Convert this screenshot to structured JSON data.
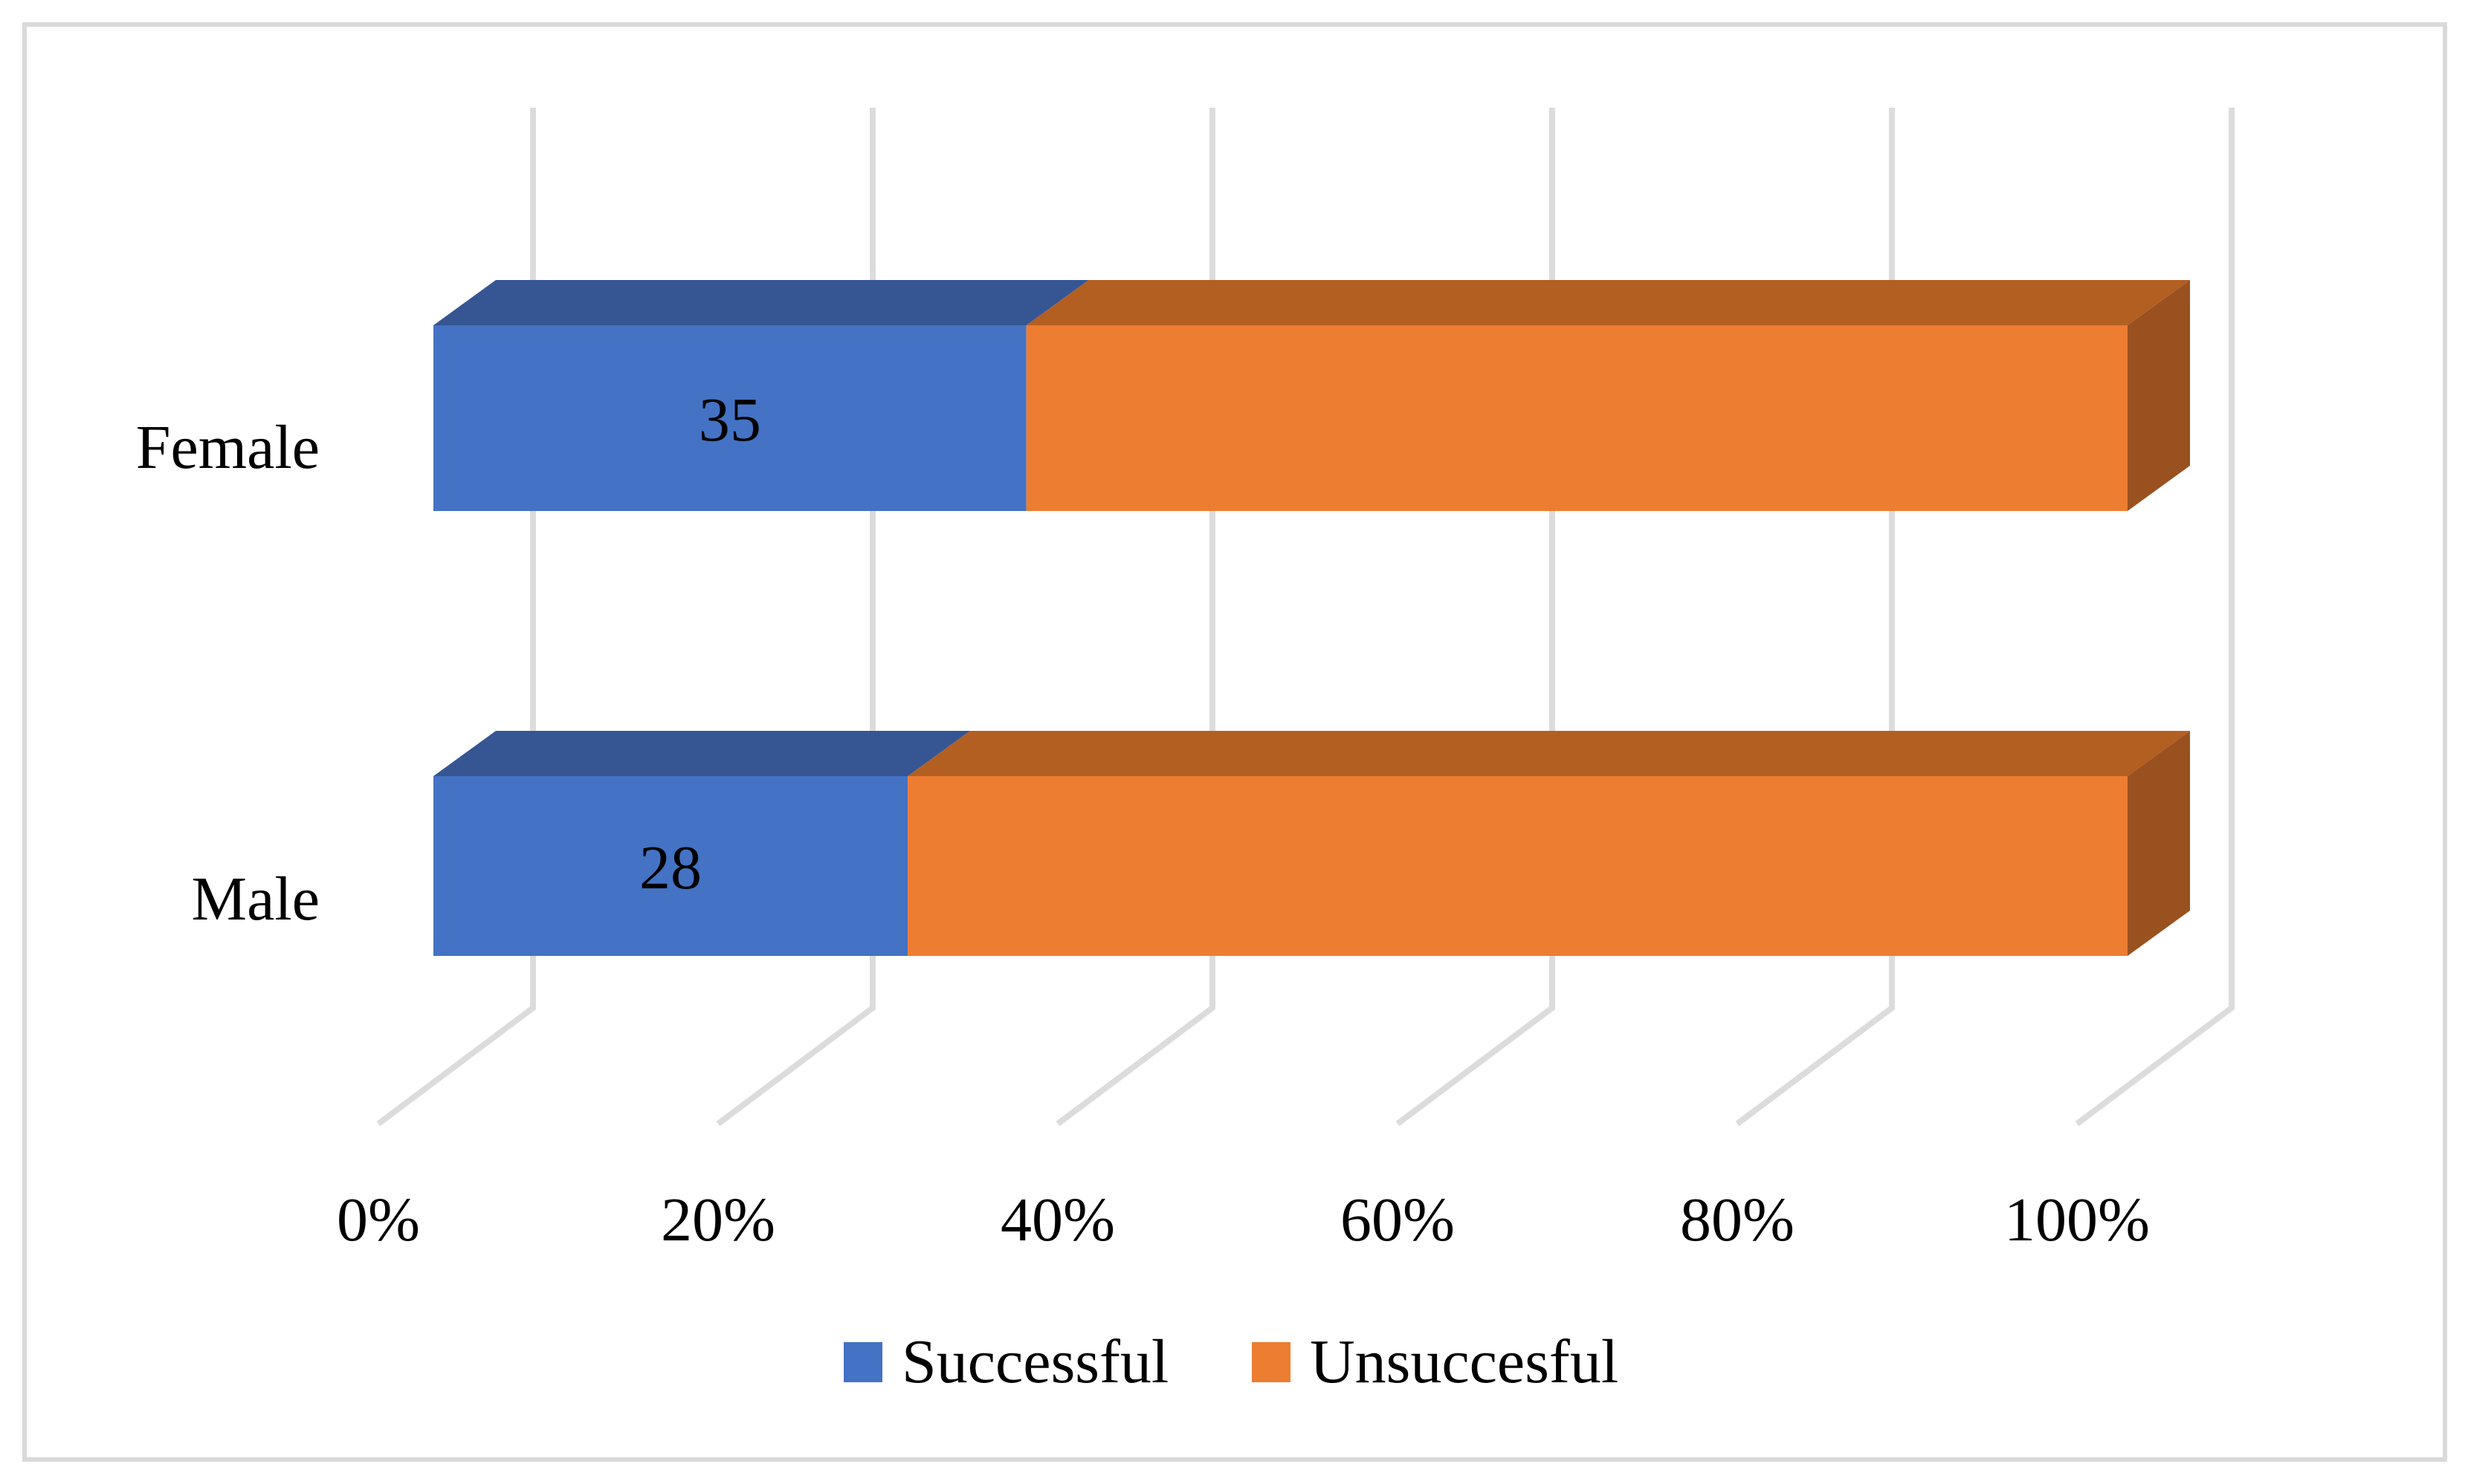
{
  "chart_data": {
    "type": "bar",
    "subtype": "horizontal-100-percent-stacked-3d",
    "title": "",
    "xlabel": "",
    "ylabel": "",
    "categories": [
      "Female",
      "Male"
    ],
    "series": [
      {
        "name": "Successful",
        "color": "#4472C4",
        "top_color": "#365593",
        "side_color": "#2F4A80",
        "values": [
          35,
          28
        ],
        "data_labels": [
          "35",
          "28"
        ]
      },
      {
        "name": "Unsuccesful",
        "color": "#ED7D31",
        "top_color": "#B35F22",
        "side_color": "#9A5120",
        "values": [
          65,
          72
        ],
        "data_labels": [
          "",
          ""
        ]
      }
    ],
    "x_axis": {
      "ticks": [
        "0%",
        "20%",
        "40%",
        "60%",
        "80%",
        "100%"
      ],
      "tick_values": [
        0,
        20,
        40,
        60,
        80,
        100
      ],
      "min": 0,
      "max": 100
    },
    "grid": {
      "show": true,
      "color": "#DCDCDC"
    },
    "legend_position": "bottom",
    "text_color": "#000000",
    "data_label_color": "#000000",
    "border_color": "#D9D9D9",
    "background": "#FFFFFF"
  },
  "legend": {
    "items": [
      {
        "label": "Successful",
        "color": "#4472C4"
      },
      {
        "label": "Unsuccesful",
        "color": "#ED7D31"
      }
    ]
  }
}
